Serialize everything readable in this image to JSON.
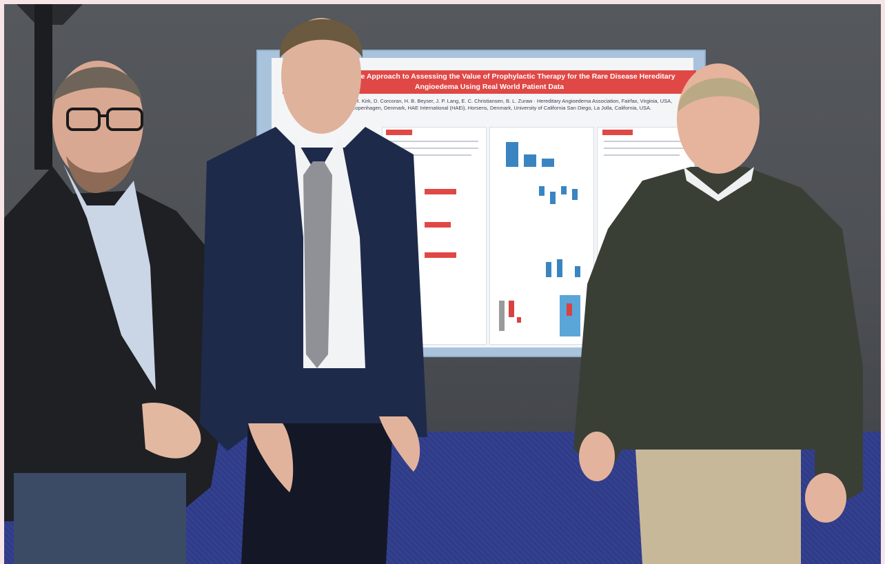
{
  "poster": {
    "title": "A Comprehensive Approach to Assessing the Value of Prophylactic Therapy for the Rare Disease Hereditary Angioedema Using Real World Patient Data",
    "authors": "Jakobsen, J. Jeneslund, A. R. Kirk, D. Corcoran, H. B. Beyser, J. P. Lang, E. C. Christiansen, B. L. Zuraw · Hereditary Angioedema Association, Fairfax, Virginia, USA, Copenhagen Economics, Copenhagen, Denmark, HAE International (HAEi), Horsens, Denmark, University of California San Diego, La Jolla, California, USA."
  },
  "colors": {
    "wall": "#4d5055",
    "carpet": "#33408b",
    "poster_border": "#a9c3dc",
    "poster_accent": "#e04846",
    "chart_blue": "#3a85c1"
  }
}
